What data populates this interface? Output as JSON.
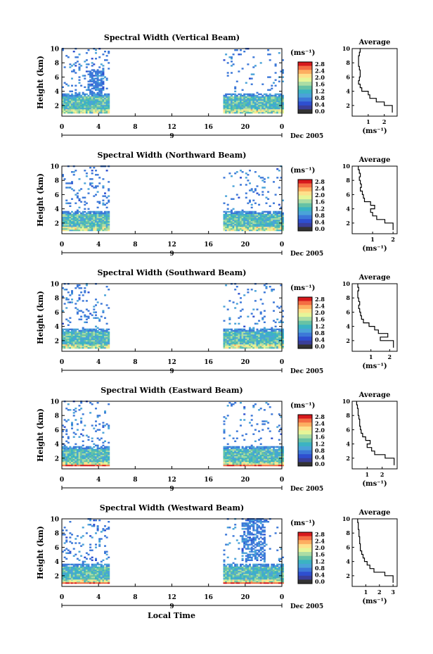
{
  "figure": {
    "xlabel": "Local Time",
    "date_label": "Dec 2005",
    "day_marker": "9",
    "unit_label": "(ms⁻¹)",
    "avg_title": "Average",
    "avg_xlabel": "(ms⁻¹)"
  },
  "colorbar": {
    "ticks": [
      "2.8",
      "2.4",
      "2.0",
      "1.6",
      "1.2",
      "0.8",
      "0.4",
      "0.0"
    ],
    "colors": [
      "#d7191c",
      "#f46d43",
      "#fdae61",
      "#fee08b",
      "#e6f598",
      "#abdda4",
      "#66c2a5",
      "#3bb3c3",
      "#4aa3d8",
      "#3c78d8",
      "#2e4fd0",
      "#3a3f9a",
      "#333333"
    ]
  },
  "chart_data": [
    {
      "type": "heatmap",
      "title": "Spectral Width (Vertical Beam)",
      "ylabel": "Height (km)",
      "xlim": [
        0,
        24
      ],
      "ylim": [
        0.5,
        10
      ],
      "xticks": [
        "0",
        "4",
        "8",
        "12",
        "16",
        "20",
        "0"
      ],
      "yticks": [
        "2",
        "4",
        "6",
        "8",
        "10"
      ],
      "colorbar_ticks": [
        "2.8",
        "2.4",
        "2.0",
        "1.6",
        "1.2",
        "0.8",
        "0.4",
        "0.0"
      ],
      "data_gap_hours": [
        5.2,
        17.5
      ],
      "average_profile": {
        "title": "Average",
        "xlabel": "(ms⁻¹)",
        "xlim": [
          0,
          2.8
        ],
        "xticks": [
          "1",
          "2"
        ],
        "yticks": [
          "2",
          "4",
          "6",
          "8",
          "10"
        ],
        "x": [
          0.55,
          0.5,
          0.45,
          0.4,
          0.4,
          0.4,
          0.45,
          0.5,
          0.5,
          0.45,
          0.4,
          0.5,
          0.6,
          1.0,
          1.1,
          1.5,
          2.0,
          2.5
        ],
        "y": [
          10,
          9.5,
          9,
          8.5,
          8,
          7.5,
          7,
          6.5,
          6,
          5.5,
          5,
          4.5,
          4,
          3.5,
          3,
          2.5,
          2,
          1
        ]
      }
    },
    {
      "type": "heatmap",
      "title": "Spectral Width (Northward Beam)",
      "ylabel": "Height (km)",
      "xlim": [
        0,
        24
      ],
      "ylim": [
        0.5,
        10
      ],
      "xticks": [
        "0",
        "4",
        "8",
        "12",
        "16",
        "20",
        "0"
      ],
      "yticks": [
        "2",
        "4",
        "6",
        "8",
        "10"
      ],
      "colorbar_ticks": [
        "2.8",
        "2.4",
        "2.0",
        "1.6",
        "1.2",
        "0.8",
        "0.4",
        "0.0"
      ],
      "data_gap_hours": [
        5.2,
        17.5
      ],
      "average_profile": {
        "title": "Average",
        "xlabel": "(ms⁻¹)",
        "xlim": [
          0,
          2.2
        ],
        "xticks": [
          "1",
          "2"
        ],
        "yticks": [
          "2",
          "4",
          "6",
          "8",
          "10"
        ],
        "x": [
          0.3,
          0.3,
          0.35,
          0.4,
          0.35,
          0.4,
          0.45,
          0.4,
          0.5,
          0.55,
          0.6,
          0.9,
          1.1,
          0.9,
          1.0,
          1.2,
          1.6,
          2.0
        ],
        "y": [
          10,
          9.5,
          9,
          8.5,
          8,
          7.5,
          7,
          6.5,
          6,
          5.5,
          5,
          4.5,
          4,
          3.5,
          3,
          2.5,
          2,
          1
        ]
      }
    },
    {
      "type": "heatmap",
      "title": "Spectral Width (Southward Beam)",
      "ylabel": "Height (km)",
      "xlim": [
        0,
        24
      ],
      "ylim": [
        0.5,
        10
      ],
      "xticks": [
        "0",
        "4",
        "8",
        "12",
        "16",
        "20",
        "0"
      ],
      "yticks": [
        "2",
        "4",
        "6",
        "8",
        "10"
      ],
      "colorbar_ticks": [
        "2.8",
        "2.4",
        "2.0",
        "1.6",
        "1.2",
        "0.8",
        "0.4",
        "0.0"
      ],
      "data_gap_hours": [
        5.2,
        17.5
      ],
      "average_profile": {
        "title": "Average",
        "xlabel": "(ms⁻¹)",
        "xlim": [
          0,
          2.4
        ],
        "xticks": [
          "1",
          "2"
        ],
        "yticks": [
          "2",
          "4",
          "6",
          "8",
          "10"
        ],
        "x": [
          0.3,
          0.3,
          0.35,
          0.3,
          0.3,
          0.35,
          0.4,
          0.35,
          0.4,
          0.45,
          0.5,
          0.6,
          0.9,
          1.2,
          1.4,
          1.9,
          1.5,
          2.2
        ],
        "y": [
          10,
          9.5,
          9,
          8.5,
          8,
          7.5,
          7,
          6.5,
          6,
          5.5,
          5,
          4.5,
          4,
          3.5,
          3,
          2.5,
          2,
          1
        ]
      }
    },
    {
      "type": "heatmap",
      "title": "Spectral Width (Eastward Beam)",
      "ylabel": "Height (km)",
      "xlim": [
        0,
        24
      ],
      "ylim": [
        0.5,
        10
      ],
      "xticks": [
        "0",
        "4",
        "8",
        "12",
        "16",
        "20",
        "0"
      ],
      "yticks": [
        "2",
        "4",
        "6",
        "8",
        "10"
      ],
      "colorbar_ticks": [
        "2.8",
        "2.4",
        "2.0",
        "1.6",
        "1.2",
        "0.8",
        "0.4",
        "0.0"
      ],
      "data_gap_hours": [
        5.2,
        17.5
      ],
      "average_profile": {
        "title": "Average",
        "xlabel": "(ms⁻¹)",
        "xlim": [
          0,
          3.0
        ],
        "xticks": [
          "1",
          "2"
        ],
        "yticks": [
          "2",
          "4",
          "6",
          "8",
          "10"
        ],
        "x": [
          0.3,
          0.3,
          0.35,
          0.4,
          0.4,
          0.45,
          0.5,
          0.5,
          0.55,
          0.6,
          0.7,
          0.9,
          1.2,
          1.0,
          1.3,
          1.5,
          2.2,
          2.8
        ],
        "y": [
          10,
          9.5,
          9,
          8.5,
          8,
          7.5,
          7,
          6.5,
          6,
          5.5,
          5,
          4.5,
          4,
          3.5,
          3,
          2.5,
          2,
          1
        ]
      }
    },
    {
      "type": "heatmap",
      "title": "Spectral Width (Westward Beam)",
      "ylabel": "Height (km)",
      "xlim": [
        0,
        24
      ],
      "ylim": [
        0.5,
        10
      ],
      "xticks": [
        "0",
        "4",
        "8",
        "12",
        "16",
        "20",
        "0"
      ],
      "yticks": [
        "2",
        "4",
        "6",
        "8",
        "10"
      ],
      "colorbar_ticks": [
        "2.8",
        "2.4",
        "2.0",
        "1.6",
        "1.2",
        "0.8",
        "0.4",
        "0.0"
      ],
      "data_gap_hours": [
        5.2,
        17.5
      ],
      "average_profile": {
        "title": "Average",
        "xlabel": "(ms⁻¹)",
        "xlim": [
          0,
          3.3
        ],
        "xticks": [
          "1",
          "2",
          "3"
        ],
        "yticks": [
          "2",
          "4",
          "6",
          "8",
          "10"
        ],
        "x": [
          0.4,
          0.4,
          0.45,
          0.45,
          0.5,
          0.5,
          0.55,
          0.55,
          0.6,
          0.6,
          0.7,
          0.8,
          0.9,
          1.1,
          1.3,
          1.6,
          2.4,
          3.0
        ],
        "y": [
          10,
          9.5,
          9,
          8.5,
          8,
          7.5,
          7,
          6.5,
          6,
          5.5,
          5,
          4.5,
          4,
          3.5,
          3,
          2.5,
          2,
          1
        ]
      }
    }
  ]
}
